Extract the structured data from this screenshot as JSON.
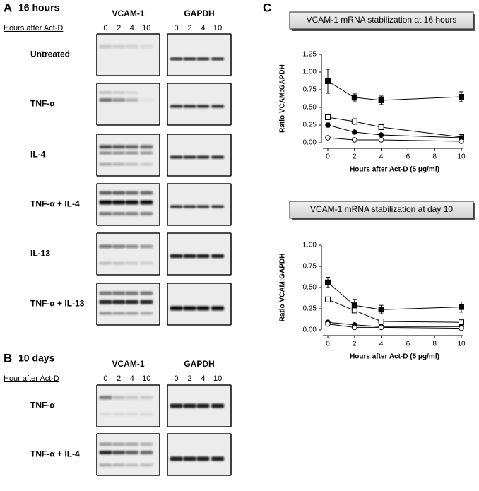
{
  "panel_a": {
    "letter": "A",
    "title": "16 hours",
    "axis_label": "Hours after Act-D",
    "columns": [
      "VCAM-1",
      "GAPDH"
    ],
    "timepoints": [
      "0",
      "2",
      "4",
      "10"
    ],
    "rows": [
      "Untreated",
      "TNF-α",
      "IL-4",
      "TNF-α + IL-4",
      "IL-13",
      "TNF-α + IL-13"
    ]
  },
  "panel_b": {
    "letter": "B",
    "title": "10 days",
    "axis_label": "Hour after Act-D",
    "columns": [
      "VCAM-1",
      "GAPDH"
    ],
    "timepoints": [
      "0",
      "2",
      "4",
      "10"
    ],
    "rows": [
      "TNF-α",
      "TNF-α + IL-4"
    ]
  },
  "panel_c": {
    "letter": "C"
  },
  "chart_data": [
    {
      "type": "line",
      "title": "VCAM-1 mRNA stabilization at 16 hours",
      "x_label": "Hours after Act-D (5 μg/ml)",
      "y_label": "Ratio VCAM:GAPDH",
      "x": [
        0,
        2,
        4,
        10
      ],
      "xlim": [
        0,
        10
      ],
      "xticks": [
        0,
        2,
        4,
        6,
        8,
        10
      ],
      "ylim": [
        0,
        1.25
      ],
      "yticks": [
        {
          "value": 0,
          "label": "0.00"
        },
        {
          "value": 0.25,
          "label": "0.25"
        },
        {
          "value": 0.5,
          "label": "0.50"
        },
        {
          "value": 0.75,
          "label": "0.75"
        },
        {
          "value": 1,
          "label": "1.00"
        },
        {
          "value": 1.25,
          "label": "1.25"
        }
      ],
      "series": [
        {
          "marker": "square",
          "fill": "#000000",
          "color": "#000000",
          "values": [
            0.87,
            0.64,
            0.6,
            0.65
          ],
          "errors": [
            0.17,
            0.05,
            0.06,
            0.07
          ]
        },
        {
          "marker": "square",
          "fill": "#ffffff",
          "color": "#000000",
          "values": [
            0.36,
            0.3,
            0.22,
            0.08
          ],
          "errors": [
            null,
            0.04,
            null,
            null
          ]
        },
        {
          "marker": "circle",
          "fill": "#000000",
          "color": "#000000",
          "values": [
            0.25,
            0.15,
            0.11,
            0.07
          ],
          "errors": [
            0.03,
            null,
            null,
            null
          ]
        },
        {
          "marker": "circle",
          "fill": "#ffffff",
          "color": "#000000",
          "values": [
            0.07,
            0.04,
            0.04,
            0.02
          ],
          "errors": [
            null,
            null,
            null,
            null
          ]
        }
      ]
    },
    {
      "type": "line",
      "title": "VCAM-1 mRNA stabilization at day 10",
      "x_label": "Hours after Act-D (5 μg/ml)",
      "y_label": "Ratio VCAM:GAPDH",
      "x": [
        0,
        2,
        4,
        10
      ],
      "xlim": [
        0,
        10
      ],
      "xticks": [
        0,
        2,
        4,
        6,
        8,
        10
      ],
      "ylim": [
        0,
        1
      ],
      "yticks": [
        {
          "value": 0,
          "label": "0.00"
        },
        {
          "value": 0.25,
          "label": "0.25"
        },
        {
          "value": 0.5,
          "label": "0.50"
        },
        {
          "value": 0.75,
          "label": "0.75"
        },
        {
          "value": 1,
          "label": "1.00"
        }
      ],
      "series": [
        {
          "marker": "square",
          "fill": "#000000",
          "color": "#000000",
          "values": [
            0.56,
            0.29,
            0.24,
            0.27
          ],
          "errors": [
            0.06,
            0.07,
            0.05,
            0.06
          ]
        },
        {
          "marker": "square",
          "fill": "#ffffff",
          "color": "#000000",
          "values": [
            0.36,
            0.23,
            0.1,
            0.09
          ],
          "errors": [
            null,
            null,
            null,
            null
          ]
        },
        {
          "marker": "circle",
          "fill": "#000000",
          "color": "#000000",
          "values": [
            0.09,
            0.06,
            0.04,
            0.04
          ],
          "errors": [
            null,
            null,
            null,
            null
          ]
        },
        {
          "marker": "circle",
          "fill": "#ffffff",
          "color": "#000000",
          "values": [
            0.07,
            0.03,
            0.03,
            0.02
          ],
          "errors": [
            null,
            null,
            null,
            null
          ]
        }
      ]
    }
  ]
}
